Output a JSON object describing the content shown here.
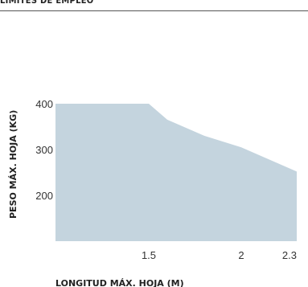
{
  "header": {
    "text": "LÍMITES DE EMPLEO"
  },
  "chart_data": {
    "type": "area",
    "xlabel": "LONGITUD MÁX. HOJA (M)",
    "ylabel": "PESO MÁX. HOJA (KG)",
    "x_ticks": [
      "1.5",
      "2",
      "2.3"
    ],
    "y_ticks": [
      "400",
      "300",
      "200"
    ],
    "xlim": [
      0.5,
      2.3
    ],
    "ylim": [
      100,
      400
    ],
    "series": [
      {
        "x": [
          0.5,
          1.5,
          1.6,
          1.8,
          2.0,
          2.3
        ],
        "y": [
          400,
          400,
          365,
          330,
          305,
          252
        ]
      }
    ],
    "fill_color": "#c4d4de",
    "grid": false
  }
}
